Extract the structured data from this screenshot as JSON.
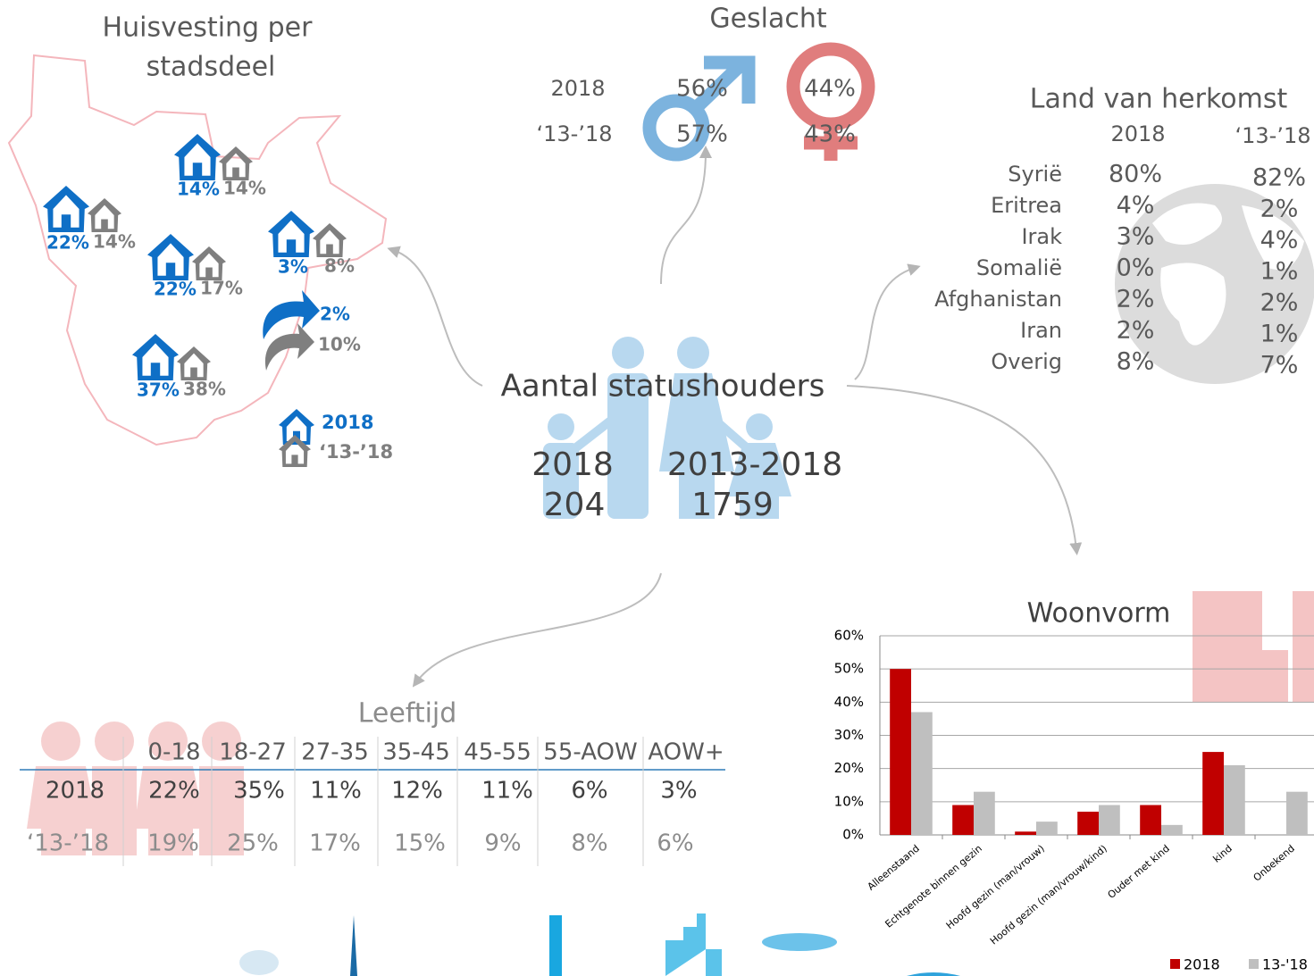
{
  "housing": {
    "title_lines": [
      "Huisvesting per",
      "stadsdeel"
    ],
    "districts": [
      {
        "v2018": "14%",
        "v1318": "14%"
      },
      {
        "v2018": "22%",
        "v1318": "14%"
      },
      {
        "v2018": "22%",
        "v1318": "17%"
      },
      {
        "v2018": "3%",
        "v1318": "8%"
      },
      {
        "v2018": "37%",
        "v1318": "38%"
      }
    ],
    "outside": {
      "v2018": "2%",
      "v1318": "10%"
    },
    "legend": [
      "2018",
      "‘13-’18"
    ]
  },
  "gender": {
    "title": "Geslacht",
    "rows": [
      {
        "label": "2018",
        "male": "56%",
        "female": "44%"
      },
      {
        "label": "‘13-’18",
        "male": "57%",
        "female": "43%"
      }
    ]
  },
  "total": {
    "title": "Aantal statushouders",
    "groups": [
      {
        "label": "2018",
        "value": "204"
      },
      {
        "label": "2013-2018",
        "value": "1759"
      }
    ]
  },
  "origin": {
    "title": "Land van herkomst",
    "columns": [
      "2018",
      "‘13-’18"
    ],
    "rows": [
      [
        "Syrië",
        "80%",
        "82%"
      ],
      [
        "Eritrea",
        "4%",
        "2%"
      ],
      [
        "Irak",
        "3%",
        "4%"
      ],
      [
        "Somalië",
        "0%",
        "1%"
      ],
      [
        "Afghanistan",
        "2%",
        "2%"
      ],
      [
        "Iran",
        "2%",
        "1%"
      ],
      [
        "Overig",
        "8%",
        "7%"
      ]
    ]
  },
  "age": {
    "title": "Leeftijd",
    "headers": [
      "0-18",
      "18-27",
      "27-35",
      "35-45",
      "45-55",
      "55-AOW",
      "AOW+"
    ],
    "rows": [
      {
        "label": "2018",
        "values": [
          "22%",
          "35%",
          "11%",
          "12%",
          "11%",
          "6%",
          "3%"
        ]
      },
      {
        "label": "‘13-’18",
        "values": [
          "19%",
          "25%",
          "17%",
          "15%",
          "9%",
          "8%",
          "6%"
        ]
      }
    ]
  },
  "woonvorm": {
    "type": "bar",
    "title": "Woonvorm",
    "categories": [
      "Alleenstaand",
      "Echtgenote binnen gezin",
      "Hoofd gezin (man/vrouw)",
      "Hoofd gezin (man/vrouw/kind)",
      "Ouder met kind",
      "kind",
      "Onbekend"
    ],
    "series": [
      {
        "name": "2018",
        "color": "#c00000",
        "values": [
          50,
          9,
          1,
          7,
          9,
          25,
          0
        ]
      },
      {
        "name": "13-'18",
        "color": "#bfbfbf",
        "values": [
          37,
          13,
          4,
          9,
          3,
          21,
          13
        ]
      }
    ],
    "ylim": [
      0,
      60
    ],
    "yticks": [
      {
        "value": 0,
        "label": "0%"
      },
      {
        "value": 10,
        "label": "10%"
      },
      {
        "value": 20,
        "label": "20%"
      },
      {
        "value": 30,
        "label": "30%"
      },
      {
        "value": 40,
        "label": "40%"
      },
      {
        "value": 50,
        "label": "50%"
      },
      {
        "value": 60,
        "label": "60%"
      }
    ],
    "grid": true
  }
}
